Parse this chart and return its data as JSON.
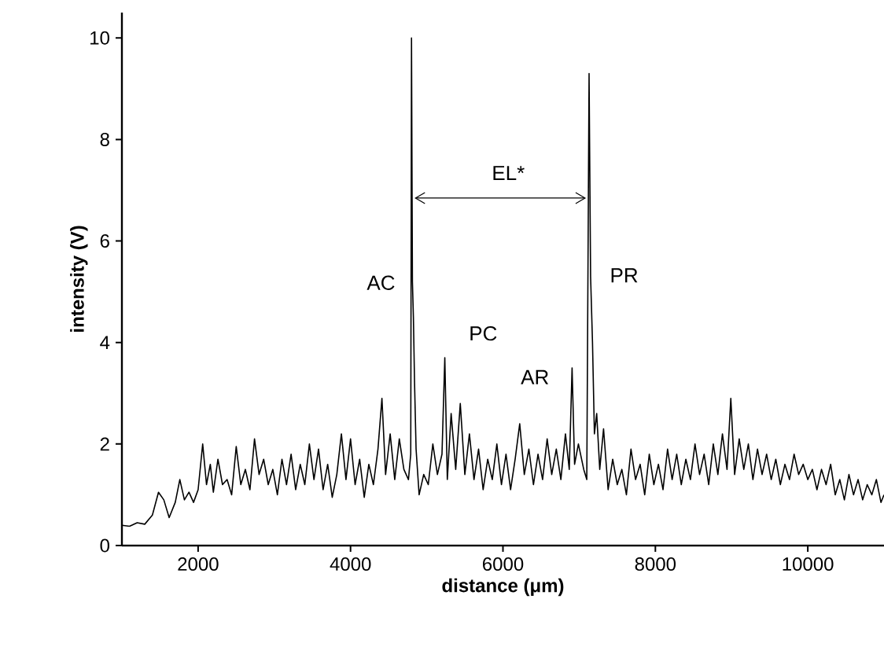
{
  "chart_data": {
    "type": "line",
    "xlabel": "distance (μm)",
    "ylabel": "intensity (V)",
    "xlim": [
      1000,
      11000
    ],
    "ylim": [
      0,
      10.5
    ],
    "xticks": [
      2000,
      4000,
      6000,
      8000,
      10000
    ],
    "yticks": [
      0,
      2,
      4,
      6,
      8,
      10
    ],
    "grid": false,
    "marker": "none",
    "line_style": "solid",
    "annotations": [
      "AC",
      "PC",
      "AR",
      "PR",
      "EL*"
    ],
    "series": [
      {
        "color": "#000000",
        "x": [
          1000,
          1100,
          1200,
          1300,
          1400,
          1480,
          1550,
          1620,
          1700,
          1760,
          1820,
          1880,
          1940,
          2000,
          2060,
          2110,
          2160,
          2200,
          2260,
          2320,
          2380,
          2440,
          2500,
          2560,
          2620,
          2680,
          2740,
          2800,
          2860,
          2920,
          2980,
          3040,
          3100,
          3160,
          3220,
          3280,
          3340,
          3400,
          3460,
          3520,
          3580,
          3640,
          3700,
          3760,
          3820,
          3880,
          3940,
          4000,
          4060,
          4120,
          4180,
          4240,
          4300,
          4360,
          4412,
          4460,
          4520,
          4580,
          4640,
          4700,
          4760,
          4790,
          4800,
          4812,
          4825,
          4840,
          4860,
          4900,
          4960,
          5020,
          5080,
          5140,
          5200,
          5237,
          5270,
          5320,
          5380,
          5440,
          5500,
          5560,
          5620,
          5680,
          5740,
          5800,
          5860,
          5920,
          5980,
          6040,
          6100,
          6160,
          6220,
          6280,
          6340,
          6400,
          6460,
          6520,
          6580,
          6640,
          6700,
          6760,
          6820,
          6870,
          6907,
          6940,
          6990,
          7060,
          7100,
          7130,
          7150,
          7175,
          7200,
          7230,
          7270,
          7320,
          7380,
          7440,
          7500,
          7560,
          7620,
          7680,
          7740,
          7800,
          7860,
          7920,
          7980,
          8040,
          8100,
          8160,
          8220,
          8280,
          8340,
          8400,
          8460,
          8520,
          8580,
          8640,
          8700,
          8760,
          8820,
          8880,
          8940,
          8990,
          9040,
          9100,
          9160,
          9220,
          9280,
          9340,
          9400,
          9460,
          9520,
          9580,
          9640,
          9700,
          9760,
          9820,
          9880,
          9940,
          10000,
          10060,
          10120,
          10180,
          10240,
          10300,
          10360,
          10420,
          10480,
          10540,
          10600,
          10660,
          10720,
          10780,
          10840,
          10900,
          10960,
          11000
        ],
        "values": [
          0.4,
          0.38,
          0.45,
          0.42,
          0.6,
          1.05,
          0.9,
          0.55,
          0.85,
          1.3,
          0.9,
          1.05,
          0.85,
          1.1,
          2.0,
          1.2,
          1.6,
          1.05,
          1.7,
          1.2,
          1.3,
          1.0,
          1.95,
          1.2,
          1.5,
          1.1,
          2.1,
          1.4,
          1.7,
          1.2,
          1.5,
          1.0,
          1.7,
          1.2,
          1.8,
          1.1,
          1.6,
          1.2,
          2.0,
          1.3,
          1.9,
          1.1,
          1.6,
          0.95,
          1.4,
          2.2,
          1.3,
          2.1,
          1.2,
          1.7,
          0.95,
          1.6,
          1.2,
          1.9,
          2.9,
          1.4,
          2.2,
          1.3,
          2.1,
          1.5,
          1.3,
          1.8,
          10.0,
          5.2,
          4.5,
          3.2,
          1.9,
          1.0,
          1.4,
          1.2,
          2.0,
          1.4,
          1.8,
          3.7,
          1.3,
          2.6,
          1.5,
          2.8,
          1.4,
          2.2,
          1.3,
          1.9,
          1.1,
          1.7,
          1.3,
          2.0,
          1.2,
          1.8,
          1.1,
          1.7,
          2.4,
          1.4,
          1.9,
          1.2,
          1.8,
          1.3,
          2.1,
          1.4,
          1.9,
          1.3,
          2.2,
          1.5,
          3.5,
          1.6,
          2.0,
          1.5,
          1.3,
          9.3,
          5.3,
          4.0,
          2.2,
          2.6,
          1.5,
          2.3,
          1.1,
          1.7,
          1.2,
          1.5,
          1.0,
          1.9,
          1.3,
          1.6,
          1.0,
          1.8,
          1.2,
          1.6,
          1.1,
          1.9,
          1.3,
          1.8,
          1.2,
          1.7,
          1.3,
          2.0,
          1.4,
          1.8,
          1.2,
          2.0,
          1.4,
          2.2,
          1.5,
          2.9,
          1.4,
          2.1,
          1.5,
          2.0,
          1.3,
          1.9,
          1.4,
          1.8,
          1.3,
          1.7,
          1.2,
          1.6,
          1.3,
          1.8,
          1.4,
          1.6,
          1.3,
          1.5,
          1.1,
          1.5,
          1.2,
          1.6,
          1.0,
          1.3,
          0.9,
          1.4,
          1.0,
          1.3,
          0.9,
          1.2,
          1.0,
          1.3,
          0.85,
          1.0
        ]
      }
    ]
  }
}
